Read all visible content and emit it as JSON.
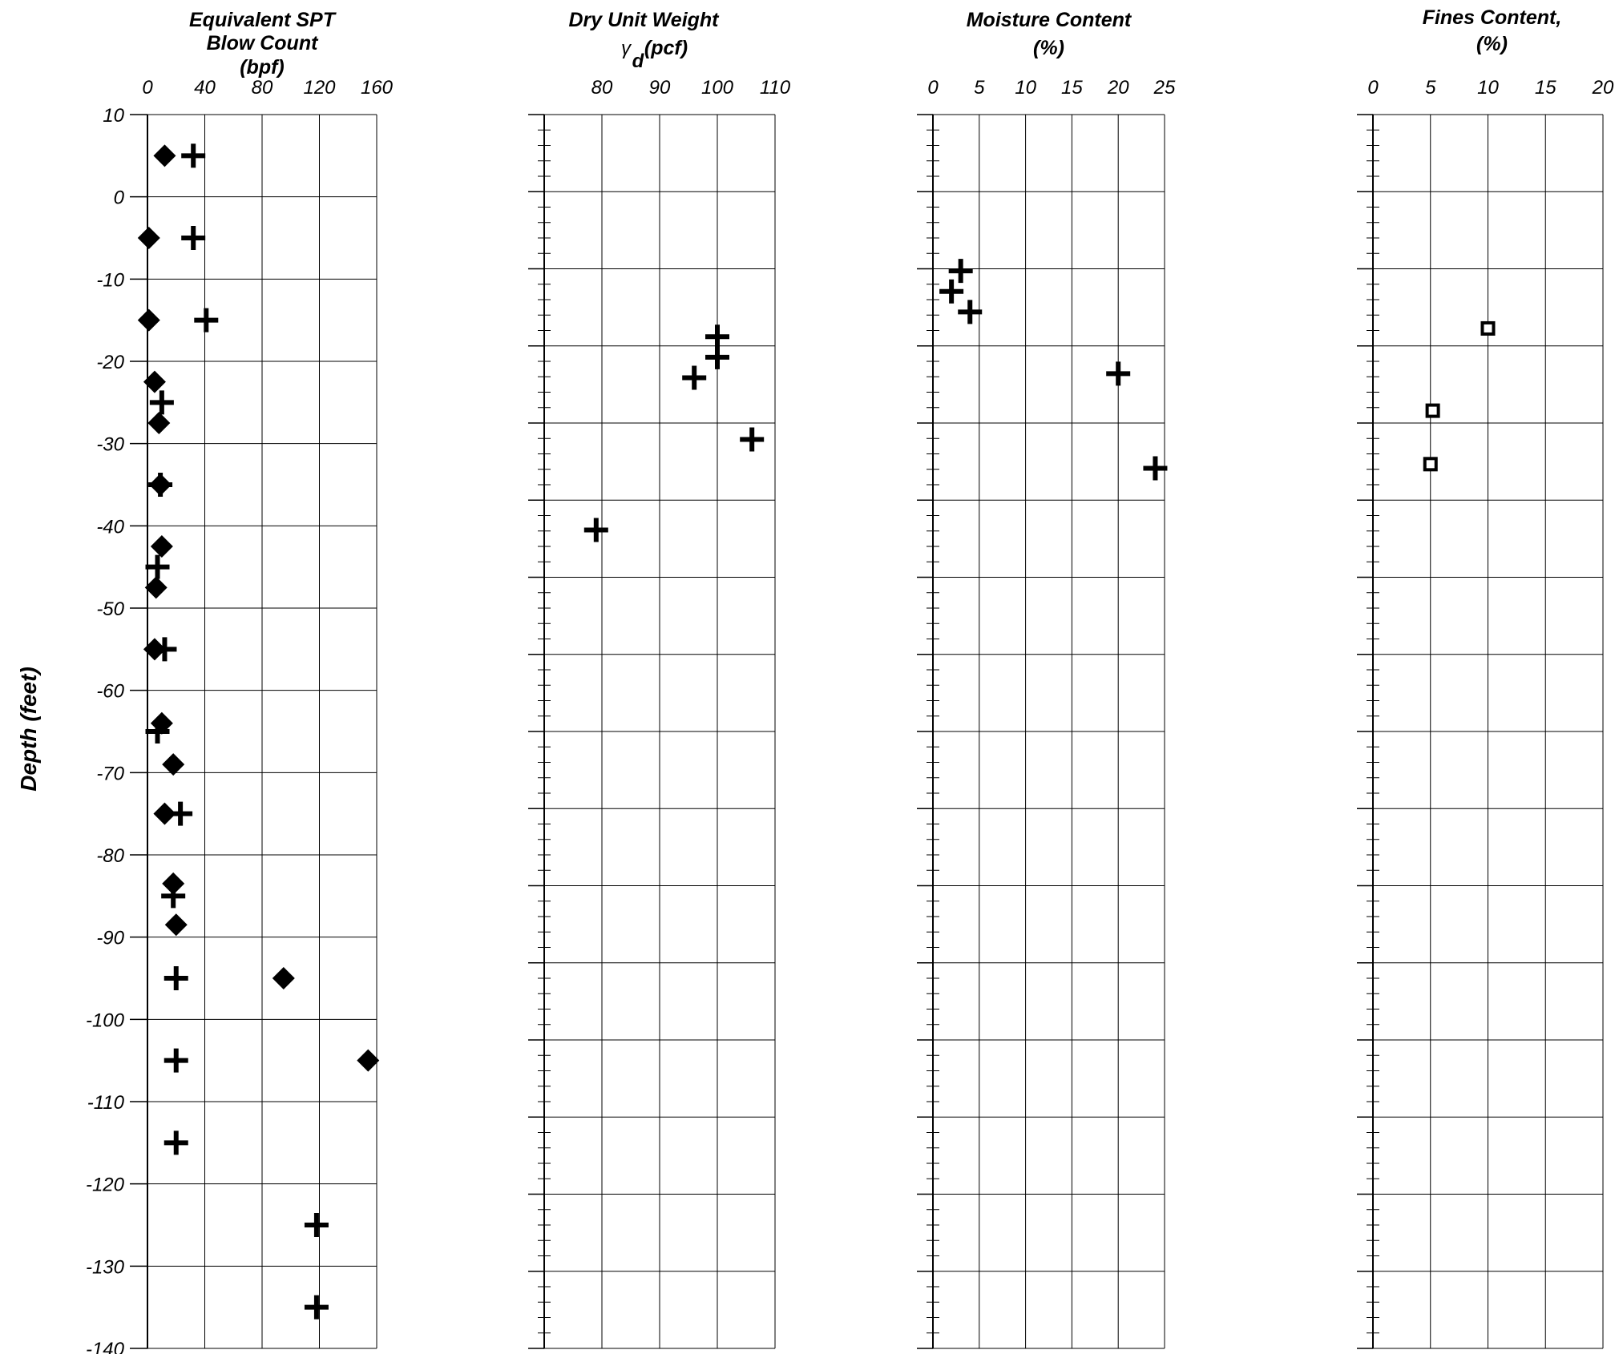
{
  "figure": {
    "y_axis_label": "Depth (feet)",
    "depth_ticks": [
      "10",
      "0",
      "-10",
      "-20",
      "-30",
      "-40",
      "-50",
      "-60",
      "-70",
      "-80",
      "-90",
      "-100",
      "-110",
      "-120",
      "-130",
      "-140"
    ]
  },
  "chart_data": [
    {
      "type": "scatter",
      "title_lines": [
        "Equivalent SPT",
        "Blow Count",
        "(bpf)"
      ],
      "xlim": [
        0,
        160
      ],
      "x_ticks": [
        "0",
        "40",
        "80",
        "120",
        "160"
      ],
      "ylim": [
        -140,
        10
      ],
      "series": [
        {
          "marker": "diamond",
          "points": [
            [
              12,
              5
            ],
            [
              1,
              -5
            ],
            [
              1,
              -15
            ],
            [
              5,
              -22.5
            ],
            [
              8,
              -27.5
            ],
            [
              9,
              -35
            ],
            [
              10,
              -42.5
            ],
            [
              6,
              -47.5
            ],
            [
              5,
              -55
            ],
            [
              10,
              -64
            ],
            [
              18,
              -69
            ],
            [
              12,
              -75
            ],
            [
              18,
              -83.5
            ],
            [
              20,
              -88.5
            ],
            [
              95,
              -95
            ],
            [
              154,
              -105
            ]
          ]
        },
        {
          "marker": "plus",
          "points": [
            [
              32,
              5
            ],
            [
              32,
              -5
            ],
            [
              41,
              -15
            ],
            [
              10,
              -25
            ],
            [
              9,
              -35
            ],
            [
              7,
              -45
            ],
            [
              12,
              -55
            ],
            [
              7,
              -65
            ],
            [
              23,
              -75
            ],
            [
              18,
              -85
            ],
            [
              20,
              -95
            ],
            [
              20,
              -105
            ],
            [
              20,
              -115
            ],
            [
              118,
              -125
            ],
            [
              118,
              -135
            ]
          ]
        }
      ]
    },
    {
      "type": "scatter",
      "title_lines": [
        "Dry Unit Weight",
        "γ",
        "d",
        "(pcf)"
      ],
      "xlim": [
        70,
        110
      ],
      "x_ticks": [
        "80",
        "90",
        "100",
        "110"
      ],
      "ylim": [
        -140,
        10
      ],
      "series": [
        {
          "marker": "plus",
          "points": [
            [
              100,
              -17
            ],
            [
              100,
              -19.5
            ],
            [
              96,
              -22
            ],
            [
              106,
              -29.5
            ],
            [
              79,
              -40.5
            ]
          ]
        }
      ]
    },
    {
      "type": "scatter",
      "title_lines": [
        "Moisture Content",
        "(%)"
      ],
      "xlim": [
        0,
        25
      ],
      "x_ticks": [
        "0",
        "5",
        "10",
        "15",
        "20",
        "25"
      ],
      "ylim": [
        -140,
        10
      ],
      "series": [
        {
          "marker": "plus",
          "points": [
            [
              3,
              -9
            ],
            [
              2,
              -11.5
            ],
            [
              4,
              -14
            ],
            [
              20,
              -21.5
            ],
            [
              24,
              -33
            ]
          ]
        }
      ]
    },
    {
      "type": "scatter",
      "title_lines": [
        "Fines Content,",
        "(%)"
      ],
      "xlim": [
        0,
        20
      ],
      "x_ticks": [
        "0",
        "5",
        "10",
        "15",
        "20"
      ],
      "ylim": [
        -140,
        10
      ],
      "series": [
        {
          "marker": "square",
          "points": [
            [
              10,
              -16
            ],
            [
              5.2,
              -26
            ],
            [
              5,
              -32.5
            ]
          ]
        }
      ]
    }
  ]
}
